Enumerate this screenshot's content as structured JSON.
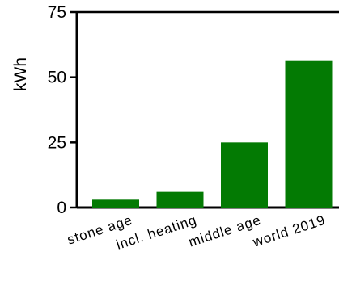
{
  "chart_data": {
    "type": "bar",
    "categories": [
      "stone age",
      "incl. heating",
      "middle age",
      "world 2019"
    ],
    "values": [
      3,
      6,
      25,
      56.5
    ],
    "title": "",
    "xlabel": "",
    "ylabel": "kWh",
    "ylim": [
      0,
      75
    ],
    "yticks": [
      "0",
      "25",
      "50",
      "75"
    ],
    "bar_color": "#037a03",
    "grid": false,
    "legend": "none"
  }
}
